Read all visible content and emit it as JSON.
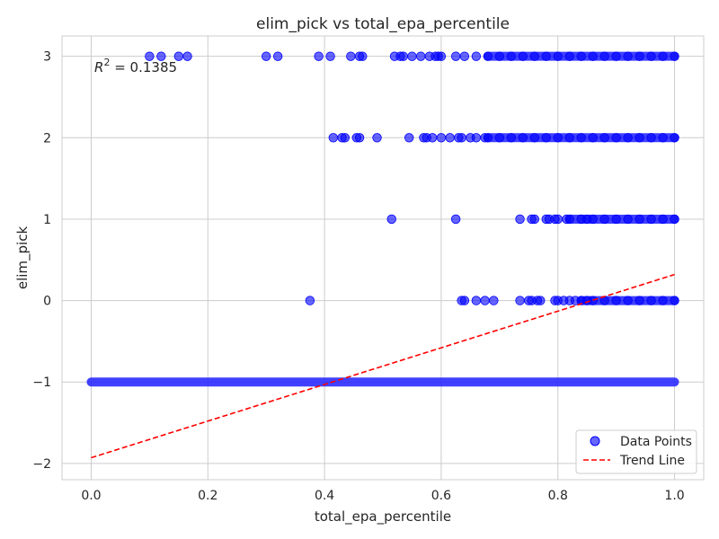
{
  "chart_data": {
    "type": "scatter",
    "title": "elim_pick vs total_epa_percentile",
    "xlabel": "total_epa_percentile",
    "ylabel": "elim_pick",
    "xlim": [
      -0.05,
      1.05
    ],
    "ylim": [
      -2.2,
      3.25
    ],
    "xticks": [
      0.0,
      0.2,
      0.4,
      0.6,
      0.8,
      1.0
    ],
    "xtick_labels": [
      "0.0",
      "0.2",
      "0.4",
      "0.6",
      "0.8",
      "1.0"
    ],
    "yticks": [
      -2,
      -1,
      0,
      1,
      2,
      3
    ],
    "ytick_labels": [
      "−2",
      "−1",
      "0",
      "1",
      "2",
      "3"
    ],
    "grid": true,
    "legend_position": "bottom-right",
    "annotation": {
      "prefix": "R",
      "sup": "2",
      "suffix": " = 0.1385"
    },
    "series": [
      {
        "name": "Data Points",
        "color": "#0000ff",
        "marker": "circle",
        "points": [
          {
            "y": 3,
            "x": [
              0.1,
              0.12,
              0.15,
              0.165,
              0.3,
              0.32,
              0.39,
              0.41,
              0.445,
              0.46,
              0.465,
              0.52,
              0.53,
              0.535,
              0.55,
              0.565,
              0.58,
              0.59,
              0.595,
              0.6,
              0.625,
              0.64,
              0.66,
              0.68,
              0.7,
              0.72,
              0.74,
              0.76,
              0.78,
              0.8,
              0.82,
              0.84,
              0.86,
              0.88,
              0.9,
              0.92,
              0.94,
              0.96,
              0.98,
              1.0
            ]
          },
          {
            "y": 2,
            "x": [
              0.415,
              0.43,
              0.435,
              0.455,
              0.46,
              0.49,
              0.545,
              0.57,
              0.575,
              0.585,
              0.6,
              0.615,
              0.63,
              0.635,
              0.65,
              0.66,
              0.675,
              0.68,
              0.7,
              0.72,
              0.74,
              0.76,
              0.78,
              0.8,
              0.82,
              0.84,
              0.86,
              0.88,
              0.9,
              0.92,
              0.94,
              0.96,
              0.98,
              1.0
            ]
          },
          {
            "y": 1,
            "x": [
              0.515,
              0.625,
              0.735,
              0.755,
              0.76,
              0.78,
              0.785,
              0.795,
              0.8,
              0.815,
              0.82,
              0.84,
              0.85,
              0.86,
              0.88,
              0.9,
              0.92,
              0.94,
              0.96,
              0.98,
              1.0
            ]
          },
          {
            "y": 0,
            "x": [
              0.375,
              0.635,
              0.64,
              0.66,
              0.675,
              0.69,
              0.735,
              0.75,
              0.755,
              0.765,
              0.77,
              0.795,
              0.8,
              0.81,
              0.82,
              0.83,
              0.84,
              0.85,
              0.86,
              0.88,
              0.9,
              0.92,
              0.94,
              0.96,
              0.98,
              1.0
            ]
          }
        ],
        "dense_band": {
          "y": -1,
          "x_range": [
            0.0,
            1.0
          ]
        }
      },
      {
        "name": "Trend Line",
        "color": "#ff0000",
        "style": "dashed",
        "x": [
          0.0,
          1.0
        ],
        "y": [
          -1.93,
          0.32
        ]
      }
    ]
  }
}
